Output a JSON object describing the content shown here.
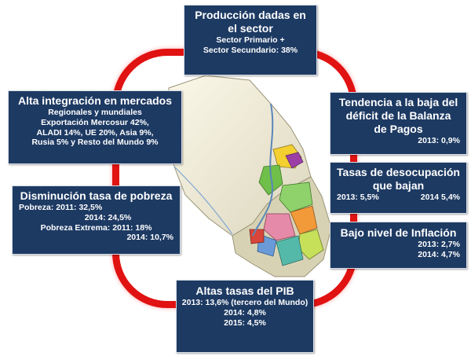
{
  "top": {
    "title_l1": "Producción dadas en",
    "title_l2": "el sector",
    "sub1": "Sector Primario +",
    "sub2": "Sector Secundario: 38%"
  },
  "integration": {
    "title": "Alta integración en mercados",
    "lines": [
      "Regionales y mundiales",
      "Exportación Mercosur 42%,",
      "ALADI 14%, UE 20%, Asia 9%,",
      "Rusia 5% y Resto del Mundo 9%"
    ]
  },
  "poverty": {
    "title": "Disminución tasa de pobreza",
    "lines": [
      "Pobreza: 2011: 32,5%",
      "2014: 24,5%",
      "Pobreza Extrema: 2011: 18%",
      "2014: 10,7%"
    ]
  },
  "deficit": {
    "title_lines": [
      "Tendencia a la baja del",
      "déficit de la Balanza",
      "de Pagos"
    ],
    "value": "2013: 0,9%"
  },
  "unemployment": {
    "title_lines": [
      "Tasas de desocupación",
      "que bajan"
    ],
    "v2013": "2013: 5,5%",
    "v2014": "2014 5,4%"
  },
  "inflation": {
    "title": "Bajo nivel de Inflación",
    "lines": [
      "2013: 2,7%",
      "2014: 4,7%"
    ]
  },
  "gdp": {
    "title": "Altas tasas del PIB",
    "lines": [
      "2013: 13,6% (tercero del Mundo)",
      "2014: 4,8%",
      "2015: 4,5%"
    ]
  },
  "colors": {
    "box_bg": "#1d3a63",
    "ring": "#e11212",
    "map_base": "#f2eedc"
  }
}
